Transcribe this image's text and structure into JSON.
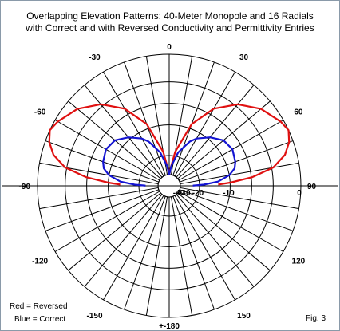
{
  "title_line1": "Overlapping Elevation Patterns: 40-Meter Monopole and 16 Radials",
  "title_line2": "with Correct and with Reversed Conductivity and Permittivity Entries",
  "legend_red": "Red = Reversed",
  "legend_blue": "Blue = Correct",
  "figure_label": "Fig. 3",
  "chart_data": {
    "type": "polar",
    "angle_labels": [
      "0",
      "30",
      "60",
      "90",
      "120",
      "150",
      "+-180",
      "-150",
      "-120",
      "-90",
      "-60",
      "-30"
    ],
    "angle_label_values": [
      0,
      30,
      60,
      90,
      120,
      150,
      180,
      -150,
      -120,
      -90,
      -60,
      -30
    ],
    "radial_labels": [
      "0",
      "-10",
      "-20",
      "-30",
      "-40"
    ],
    "radial_values_db": [
      0,
      -10,
      -20,
      -30,
      -40
    ],
    "series": [
      {
        "color": "#e01010",
        "points_deg_db": [
          [
            0,
            -40
          ],
          [
            4,
            -30
          ],
          [
            10,
            -18
          ],
          [
            20,
            -9
          ],
          [
            30,
            -5
          ],
          [
            40,
            -2.7
          ],
          [
            50,
            -1.2
          ],
          [
            60,
            -0.3
          ],
          [
            65,
            0
          ],
          [
            70,
            -0.4
          ],
          [
            75,
            -1.2
          ],
          [
            80,
            -2.8
          ],
          [
            84,
            -5.8
          ],
          [
            87,
            -10
          ],
          [
            88.5,
            -13
          ]
        ]
      },
      {
        "color": "#1414d2",
        "points_deg_db": [
          [
            0,
            -40
          ],
          [
            6,
            -27
          ],
          [
            15,
            -18
          ],
          [
            25,
            -13
          ],
          [
            30,
            -11.5
          ],
          [
            40,
            -9.5
          ],
          [
            50,
            -8
          ],
          [
            60,
            -7.6
          ],
          [
            70,
            -8.1
          ],
          [
            75,
            -8.6
          ],
          [
            80,
            -10
          ],
          [
            85,
            -13
          ],
          [
            88,
            -18
          ],
          [
            89.5,
            -24
          ]
        ]
      }
    ]
  }
}
